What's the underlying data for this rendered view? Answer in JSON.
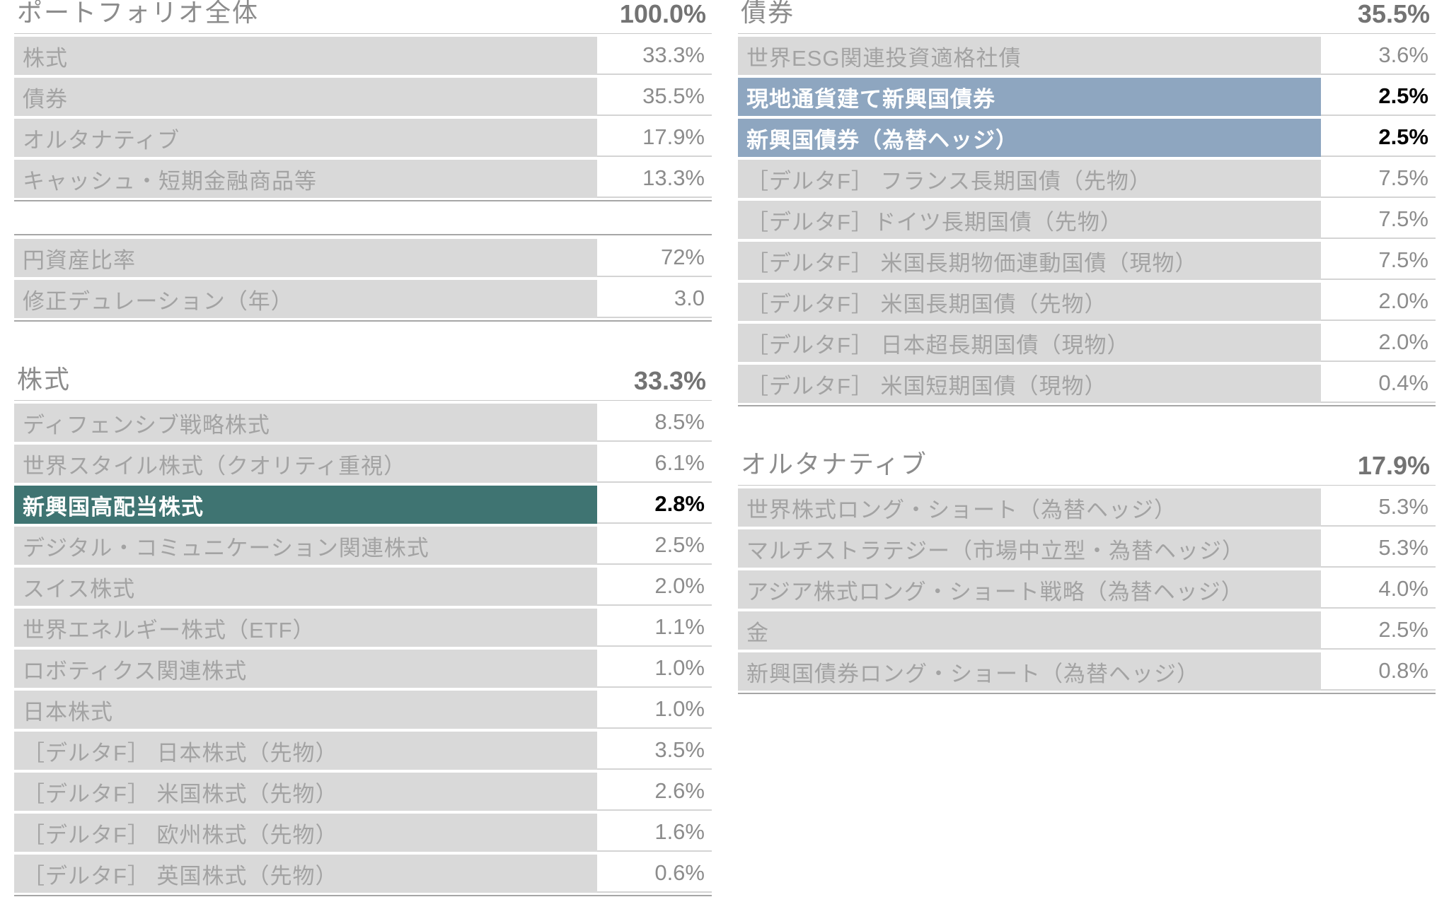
{
  "colors": {
    "teal": "#3F7472",
    "blue": "#8EA6C0",
    "row_bg": "#D9D9D9",
    "row_text": "#A3A3A3",
    "value_text": "#8C8C8C",
    "header_text": "#8C8C8C",
    "header_value": "#737373"
  },
  "tables": {
    "portfolio": {
      "title": "ポートフォリオ全体",
      "total": "100.0%",
      "rows": [
        {
          "label": "株式",
          "value": "33.3%"
        },
        {
          "label": "債券",
          "value": "35.5%"
        },
        {
          "label": "オルタナティブ",
          "value": "17.9%"
        },
        {
          "label": "キャッシュ・短期金融商品等",
          "value": "13.3%"
        }
      ]
    },
    "stats": {
      "rows": [
        {
          "label": "円資産比率",
          "value": "72%"
        },
        {
          "label": "修正デュレーション（年）",
          "value": "3.0"
        }
      ]
    },
    "equity": {
      "title": "株式",
      "total": "33.3%",
      "rows": [
        {
          "label": "ディフェンシブ戦略株式",
          "value": "8.5%"
        },
        {
          "label": "世界スタイル株式（クオリティ重視）",
          "value": "6.1%"
        },
        {
          "label": "新興国高配当株式",
          "value": "2.8%",
          "highlight": "teal"
        },
        {
          "label": "デジタル・コミュニケーション関連株式",
          "value": "2.5%"
        },
        {
          "label": "スイス株式",
          "value": "2.0%"
        },
        {
          "label": "世界エネルギー株式（ETF）",
          "value": "1.1%"
        },
        {
          "label": "ロボティクス関連株式",
          "value": "1.0%"
        },
        {
          "label": "日本株式",
          "value": "1.0%"
        },
        {
          "label": "［デルタF］ 日本株式（先物）",
          "value": "3.5%"
        },
        {
          "label": "［デルタF］ 米国株式（先物）",
          "value": "2.6%"
        },
        {
          "label": "［デルタF］ 欧州株式（先物）",
          "value": "1.6%"
        },
        {
          "label": "［デルタF］ 英国株式（先物）",
          "value": "0.6%"
        }
      ]
    },
    "bonds": {
      "title": "債券",
      "total": "35.5%",
      "rows": [
        {
          "label": "世界ESG関連投資適格社債",
          "value": "3.6%"
        },
        {
          "label": "現地通貨建て新興国債券",
          "value": "2.5%",
          "highlight": "blue"
        },
        {
          "label": "新興国債券（為替ヘッジ）",
          "value": "2.5%",
          "highlight": "blue"
        },
        {
          "label": "［デルタF］ フランス長期国債（先物）",
          "value": "7.5%"
        },
        {
          "label": "［デルタF］ドイツ長期国債（先物）",
          "value": "7.5%"
        },
        {
          "label": "［デルタF］ 米国長期物価連動国債（現物）",
          "value": "7.5%"
        },
        {
          "label": "［デルタF］ 米国長期国債（先物）",
          "value": "2.0%"
        },
        {
          "label": "［デルタF］ 日本超長期国債（現物）",
          "value": "2.0%"
        },
        {
          "label": "［デルタF］ 米国短期国債（現物）",
          "value": "0.4%"
        }
      ]
    },
    "alternatives": {
      "title": "オルタナティブ",
      "total": "17.9%",
      "rows": [
        {
          "label": "世界株式ロング・ショート（為替ヘッジ）",
          "value": "5.3%"
        },
        {
          "label": "マルチストラテジー（市場中立型・為替ヘッジ）",
          "value": "5.3%"
        },
        {
          "label": "アジア株式ロング・ショート戦略（為替ヘッジ）",
          "value": "4.0%"
        },
        {
          "label": "金",
          "value": "2.5%"
        },
        {
          "label": "新興国債券ロング・ショート（為替ヘッジ）",
          "value": "0.8%"
        }
      ]
    }
  }
}
